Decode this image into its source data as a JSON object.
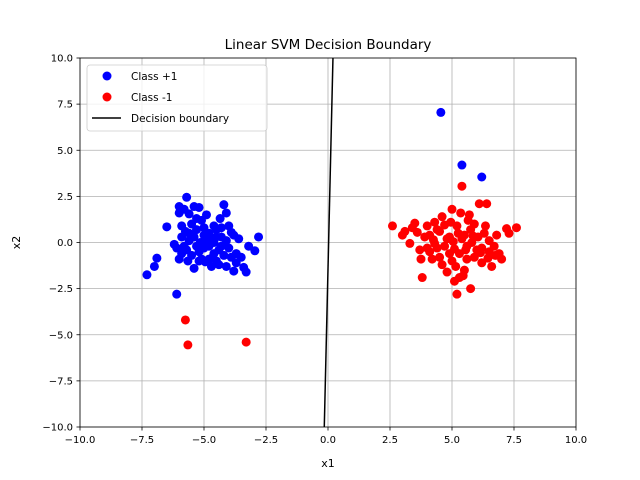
{
  "chart_data": {
    "type": "scatter",
    "title": "Linear SVM Decision Boundary",
    "xlabel": "x1",
    "ylabel": "x2",
    "xlim": [
      -10,
      10
    ],
    "ylim": [
      -10,
      10
    ],
    "xticks": [
      -10,
      -7.5,
      -5,
      -2.5,
      0,
      2.5,
      5,
      7.5,
      10
    ],
    "yticks": [
      -10,
      -7.5,
      -5,
      -2.5,
      0,
      2.5,
      5,
      7.5,
      10
    ],
    "xtick_labels": [
      "−10.0",
      "−7.5",
      "−5.0",
      "−2.5",
      "0.0",
      "2.5",
      "5.0",
      "7.5",
      "10.0"
    ],
    "ytick_labels": [
      "−10.0",
      "−7.5",
      "−5.0",
      "−2.5",
      "0.0",
      "2.5",
      "5.0",
      "7.5",
      "10.0"
    ],
    "grid": true,
    "legend_position": "top-left",
    "series": [
      {
        "name": "Class +1",
        "kind": "scatter",
        "color": "#0000ff",
        "points": [
          [
            -7.3,
            -1.75
          ],
          [
            -7.0,
            -1.3
          ],
          [
            -6.9,
            -0.85
          ],
          [
            -6.5,
            0.85
          ],
          [
            -6.1,
            -2.8
          ],
          [
            -6.0,
            1.6
          ],
          [
            -6.0,
            1.95
          ],
          [
            -5.9,
            0.9
          ],
          [
            -5.8,
            1.8
          ],
          [
            -5.7,
            2.45
          ],
          [
            -5.6,
            1.55
          ],
          [
            -5.5,
            1.0
          ],
          [
            -5.4,
            1.95
          ],
          [
            -5.4,
            -1.4
          ],
          [
            -5.3,
            0.7
          ],
          [
            -5.2,
            1.9
          ],
          [
            -5.2,
            -0.5
          ],
          [
            -5.1,
            1.2
          ],
          [
            -5.0,
            0.4
          ],
          [
            -4.9,
            1.5
          ],
          [
            -4.8,
            -0.9
          ],
          [
            -4.7,
            0.2
          ],
          [
            -4.6,
            -0.6
          ],
          [
            -4.5,
            0.7
          ],
          [
            -4.4,
            -1.2
          ],
          [
            -4.3,
            0.8
          ],
          [
            -4.2,
            2.05
          ],
          [
            -4.1,
            1.6
          ],
          [
            -4.0,
            -0.3
          ],
          [
            -3.9,
            0.55
          ],
          [
            -3.8,
            -1.55
          ],
          [
            -3.7,
            -0.6
          ],
          [
            -3.6,
            0.2
          ],
          [
            -3.5,
            -0.8
          ],
          [
            -3.4,
            -1.35
          ],
          [
            -3.3,
            -1.6
          ],
          [
            -3.2,
            -0.2
          ],
          [
            -2.95,
            -0.45
          ],
          [
            -2.8,
            0.3
          ],
          [
            -5.6,
            0.1
          ],
          [
            -5.7,
            -0.4
          ],
          [
            -5.8,
            -0.2
          ],
          [
            -5.9,
            -0.6
          ],
          [
            -6.1,
            -0.3
          ],
          [
            -5.5,
            -0.7
          ],
          [
            -5.3,
            -0.2
          ],
          [
            -5.1,
            -0.9
          ],
          [
            -5.0,
            -0.3
          ],
          [
            -4.9,
            0.1
          ],
          [
            -4.8,
            0.5
          ],
          [
            -4.6,
            0.0
          ],
          [
            -4.5,
            -1.0
          ],
          [
            -4.4,
            -0.4
          ],
          [
            -4.3,
            0.3
          ],
          [
            -4.2,
            -0.7
          ],
          [
            -4.1,
            0.1
          ],
          [
            -4.0,
            0.9
          ],
          [
            -3.9,
            -0.8
          ],
          [
            -3.8,
            0.4
          ],
          [
            -3.7,
            -1.1
          ],
          [
            -5.6,
            0.5
          ],
          [
            -5.4,
            0.3
          ],
          [
            -5.2,
            -1.0
          ],
          [
            -5.0,
            0.8
          ],
          [
            -4.8,
            -0.2
          ],
          [
            -4.7,
            -1.3
          ],
          [
            -4.5,
            0.3
          ],
          [
            -4.3,
            -0.2
          ],
          [
            -4.1,
            -1.3
          ],
          [
            -5.65,
            -1.0
          ],
          [
            -6.0,
            -0.9
          ],
          [
            -5.9,
            0.3
          ],
          [
            -5.3,
            1.3
          ],
          [
            -4.95,
            -1.05
          ],
          [
            -4.6,
            0.9
          ],
          [
            -4.35,
            1.3
          ],
          [
            -5.75,
            0.6
          ],
          [
            -5.15,
            0.0
          ],
          [
            -4.65,
            -0.8
          ],
          [
            -6.2,
            -0.1
          ]
        ]
      },
      {
        "name": "Class -1",
        "kind": "scatter",
        "color": "#ff0000",
        "points": [
          [
            -5.75,
            -4.2
          ],
          [
            -5.65,
            -5.55
          ],
          [
            -3.3,
            -5.4
          ],
          [
            5.4,
            3.05
          ],
          [
            2.6,
            0.9
          ],
          [
            3.0,
            0.4
          ],
          [
            3.1,
            0.6
          ],
          [
            3.3,
            -0.05
          ],
          [
            3.4,
            0.8
          ],
          [
            3.5,
            1.05
          ],
          [
            3.6,
            0.55
          ],
          [
            3.7,
            -0.4
          ],
          [
            3.8,
            -1.9
          ],
          [
            3.9,
            0.3
          ],
          [
            4.0,
            0.9
          ],
          [
            4.1,
            -0.5
          ],
          [
            4.2,
            -0.9
          ],
          [
            4.3,
            1.1
          ],
          [
            4.4,
            -0.3
          ],
          [
            4.5,
            0.6
          ],
          [
            4.6,
            -1.2
          ],
          [
            4.7,
            0.95
          ],
          [
            4.8,
            0.2
          ],
          [
            4.9,
            -0.6
          ],
          [
            5.0,
            1.8
          ],
          [
            5.1,
            -2.1
          ],
          [
            5.2,
            -2.8
          ],
          [
            5.25,
            0.5
          ],
          [
            5.3,
            -1.9
          ],
          [
            5.4,
            0.2
          ],
          [
            5.5,
            -1.5
          ],
          [
            5.6,
            -0.9
          ],
          [
            5.7,
            1.5
          ],
          [
            5.75,
            -2.5
          ],
          [
            5.8,
            0.0
          ],
          [
            5.9,
            1.0
          ],
          [
            6.0,
            -0.4
          ],
          [
            6.1,
            2.1
          ],
          [
            6.2,
            -1.1
          ],
          [
            6.3,
            0.5
          ],
          [
            6.4,
            2.1
          ],
          [
            6.5,
            -0.5
          ],
          [
            6.7,
            -0.2
          ],
          [
            6.8,
            0.4
          ],
          [
            6.9,
            -0.6
          ],
          [
            7.0,
            -0.9
          ],
          [
            7.2,
            0.75
          ],
          [
            7.3,
            0.5
          ],
          [
            7.6,
            0.8
          ],
          [
            4.0,
            -0.3
          ],
          [
            4.3,
            -0.05
          ],
          [
            4.5,
            -0.8
          ],
          [
            4.7,
            -0.2
          ],
          [
            4.9,
            0.3
          ],
          [
            5.1,
            -0.35
          ],
          [
            5.2,
            0.9
          ],
          [
            5.3,
            -0.6
          ],
          [
            5.5,
            0.4
          ],
          [
            5.6,
            -0.2
          ],
          [
            5.75,
            0.7
          ],
          [
            5.9,
            -0.8
          ],
          [
            6.05,
            0.3
          ],
          [
            6.2,
            -0.3
          ],
          [
            6.35,
            0.9
          ],
          [
            6.5,
            0.1
          ],
          [
            6.6,
            -1.3
          ],
          [
            6.75,
            -0.7
          ],
          [
            4.1,
            0.4
          ],
          [
            4.4,
            0.7
          ],
          [
            4.8,
            -1.6
          ],
          [
            5.0,
            -1.0
          ],
          [
            5.45,
            -1.8
          ],
          [
            5.65,
            1.2
          ],
          [
            5.85,
            0.35
          ],
          [
            6.15,
            -0.55
          ],
          [
            5.05,
            0.05
          ],
          [
            5.35,
            1.6
          ],
          [
            5.55,
            -0.4
          ],
          [
            4.6,
            1.4
          ],
          [
            3.75,
            -0.9
          ],
          [
            4.95,
            1.1
          ],
          [
            6.45,
            -0.85
          ],
          [
            5.15,
            -1.3
          ],
          [
            4.25,
            0.15
          ]
        ]
      },
      {
        "name": "",
        "kind": "scatter",
        "color": "#0000ff",
        "points": [
          [
            4.55,
            7.05
          ],
          [
            5.4,
            4.2
          ],
          [
            6.2,
            3.55
          ]
        ]
      },
      {
        "name": "Decision boundary",
        "kind": "line",
        "color": "#000000",
        "points": [
          [
            -0.15,
            -10
          ],
          [
            0.2,
            10
          ]
        ]
      }
    ]
  }
}
